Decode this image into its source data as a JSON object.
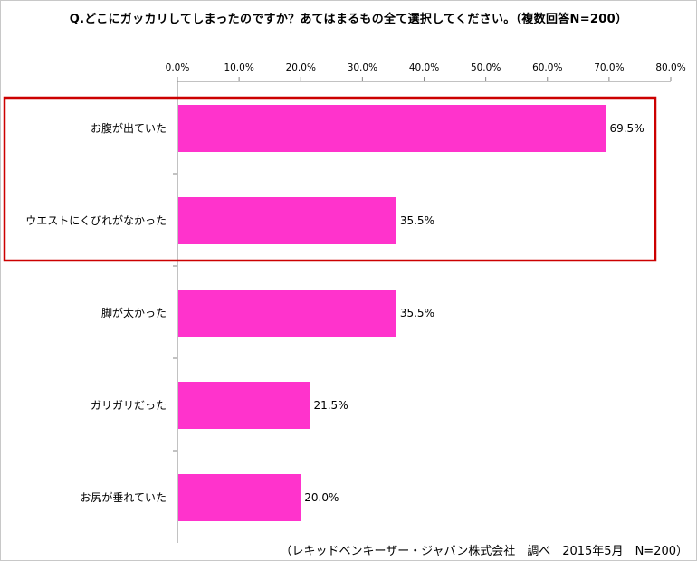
{
  "chart_data": {
    "type": "bar",
    "orientation": "horizontal",
    "title": "Q.どこにガッカリしてしまったのですか？あてはまるもの全て選択してください。（複数回答N=200）",
    "categories": [
      "お腹が出ていた",
      "ウエストにくびれがなかった",
      "脚が太かった",
      "ガリガリだった",
      "お尻が垂れていた"
    ],
    "values": [
      69.5,
      35.5,
      35.5,
      21.5,
      20.0
    ],
    "data_labels": [
      "69.5%",
      "35.5%",
      "35.5%",
      "21.5%",
      "20.0%"
    ],
    "x_ticks": [
      "0.0%",
      "10.0%",
      "20.0%",
      "30.0%",
      "40.0%",
      "50.0%",
      "60.0%",
      "70.0%",
      "80.0%"
    ],
    "xlim": [
      0,
      80
    ],
    "x_axis_position": "top",
    "grid": false,
    "legend": "none",
    "bar_color": "#ff33cc",
    "highlight": {
      "categories": [
        "お腹が出ていた",
        "ウエストにくびれがなかった"
      ],
      "color": "#cc0000"
    }
  },
  "source_note": "（レキッドベンキーザー・ジャパン株式会社　調べ　2015年5月　N=200）"
}
